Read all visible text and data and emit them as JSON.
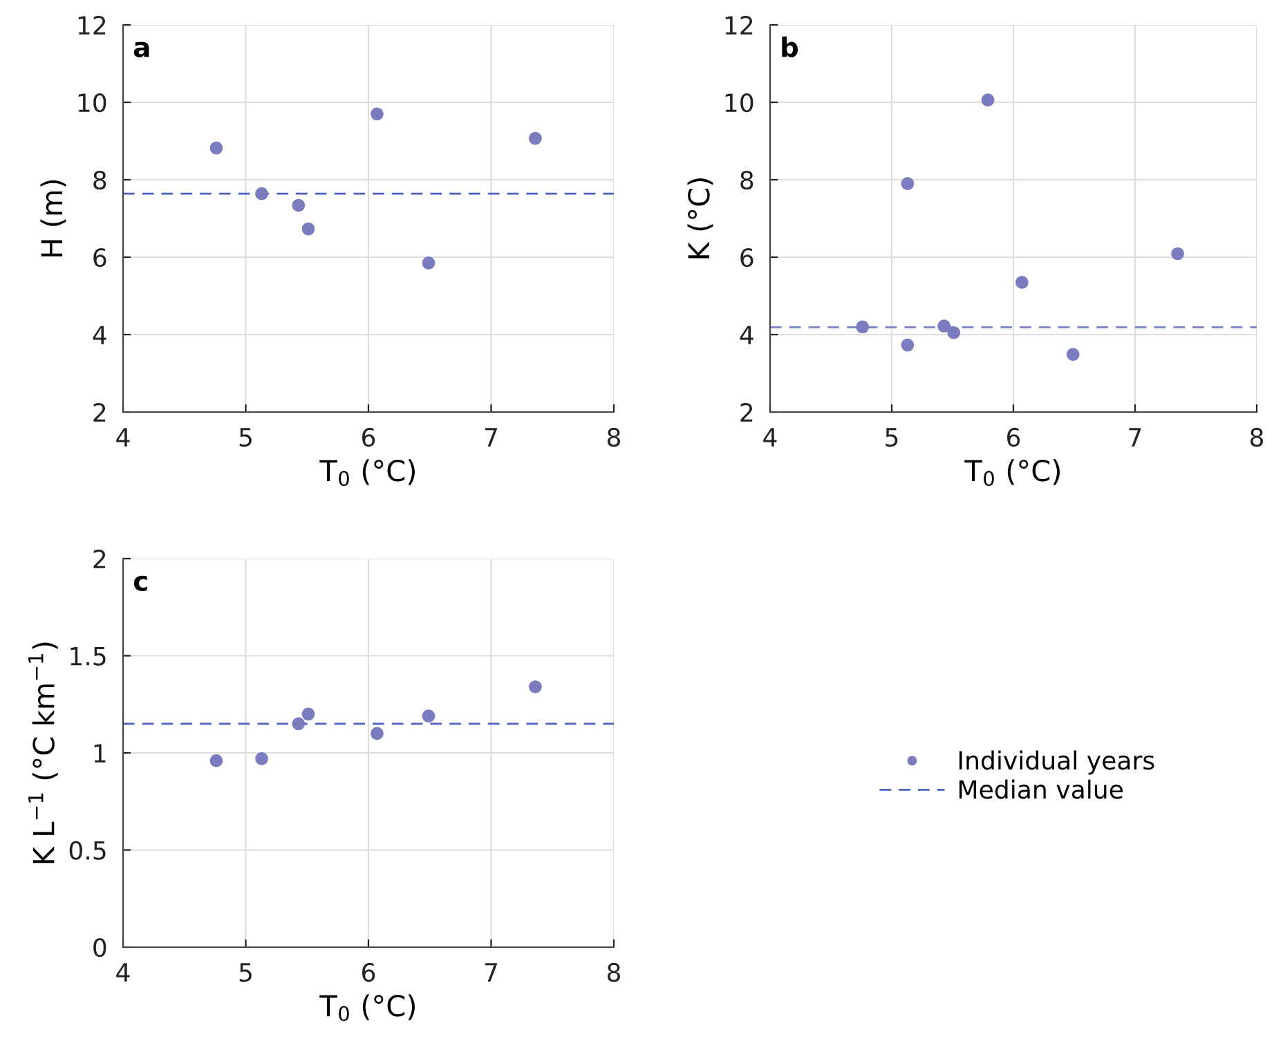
{
  "chart_data": [
    {
      "type": "scatter",
      "xlabel": "T$_{0}$ (°C)",
      "ylabel": "H (m)",
      "annotations": [
        "a"
      ],
      "x": [
        4.76,
        5.13,
        5.43,
        5.51,
        6.07,
        6.49,
        7.36
      ],
      "series": [
        {
          "color": "#7b7bbf",
          "values": [
            8.82,
            7.64,
            7.34,
            6.73,
            9.7,
            5.85,
            9.07
          ]
        }
      ],
      "ref_lines": [
        {
          "axis": "y",
          "value": 7.64,
          "color": "#4a5fc1",
          "line_style": "dashed"
        }
      ],
      "xlim": [
        4,
        8
      ],
      "xticks": [
        4,
        5,
        6,
        7,
        8
      ],
      "ylim": [
        2,
        12
      ],
      "yticks": [
        2,
        4,
        6,
        8,
        10,
        12
      ],
      "grid": true,
      "marker": "circle"
    },
    {
      "type": "scatter",
      "xlabel": "T$_{0}$ (°C)",
      "ylabel": "K (°C)",
      "annotations": [
        "b"
      ],
      "x": [
        4.76,
        5.13,
        5.13,
        5.43,
        5.51,
        5.79,
        6.07,
        6.49,
        7.35
      ],
      "series": [
        {
          "color": "#7b7bbf",
          "values": [
            4.2,
            3.73,
            7.9,
            4.22,
            4.05,
            10.06,
            5.35,
            3.49,
            6.09
          ]
        }
      ],
      "ref_lines": [
        {
          "axis": "y",
          "value": 4.19,
          "color": "#7b85c4",
          "line_style": "dashed"
        }
      ],
      "xlim": [
        4,
        8
      ],
      "xticks": [
        4,
        5,
        6,
        7,
        8
      ],
      "ylim": [
        2,
        12
      ],
      "yticks": [
        2,
        4,
        6,
        8,
        10,
        12
      ],
      "grid": true,
      "marker": "circle"
    },
    {
      "type": "scatter",
      "xlabel": "T$_{0}$ (°C)",
      "ylabel": "K L$^{−1}$ (°C km$^{−1}$)",
      "annotations": [
        "c"
      ],
      "x": [
        4.76,
        5.13,
        5.43,
        5.51,
        6.07,
        6.49,
        7.36
      ],
      "series": [
        {
          "name": "Individual years",
          "color": "#7b7bbf",
          "values": [
            0.96,
            0.97,
            1.15,
            1.2,
            1.1,
            1.19,
            1.34
          ]
        }
      ],
      "ref_lines": [
        {
          "axis": "y",
          "value": 1.15,
          "color": "#4a5fc1",
          "line_style": "dashed",
          "label": "Median value"
        }
      ],
      "xlim": [
        4,
        8
      ],
      "xticks": [
        4,
        5,
        6,
        7,
        8
      ],
      "ylim": [
        0,
        2
      ],
      "yticks": [
        0,
        0.5,
        1,
        1.5,
        2
      ],
      "grid": true,
      "marker": "circle",
      "legend": "right"
    }
  ]
}
